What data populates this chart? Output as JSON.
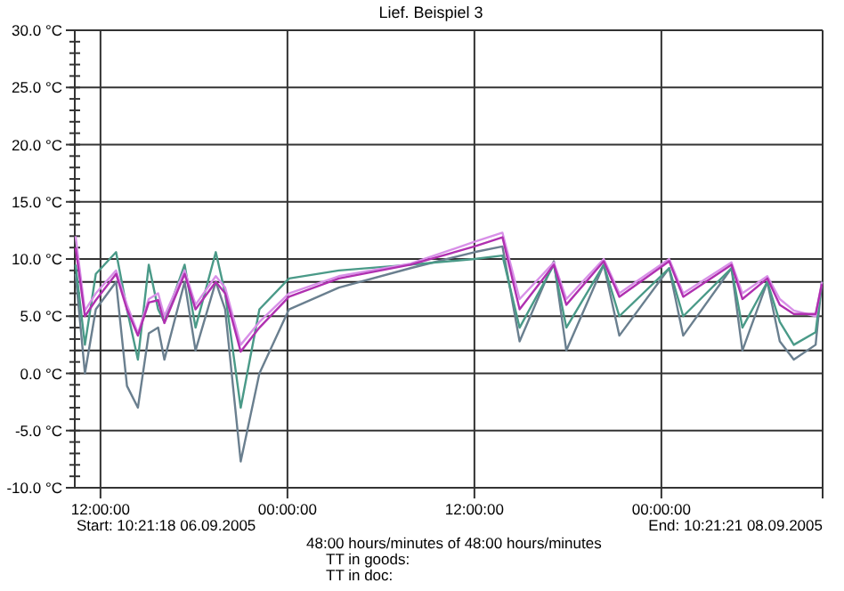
{
  "chart_data": {
    "type": "line",
    "title": "Lief. Beispiel 3",
    "x": [
      "2005-09-06T10:24",
      "2005-09-06T11:00",
      "2005-09-06T11:42",
      "2005-09-06T13:00",
      "2005-09-06T13:42",
      "2005-09-06T14:24",
      "2005-09-06T15:06",
      "2005-09-06T15:42",
      "2005-09-06T16:06",
      "2005-09-06T17:24",
      "2005-09-06T18:06",
      "2005-09-06T19:24",
      "2005-09-06T20:00",
      "2005-09-06T21:00",
      "2005-09-06T22:12",
      "2005-09-07T00:06",
      "2005-09-07T03:18",
      "2005-09-07T07:54",
      "2005-09-07T12:00",
      "2005-09-07T13:48",
      "2005-09-07T14:54",
      "2005-09-07T17:06",
      "2005-09-07T17:54",
      "2005-09-07T20:18",
      "2005-09-07T21:18",
      "2005-09-08T00:30",
      "2005-09-08T01:24",
      "2005-09-08T04:30",
      "2005-09-08T05:12",
      "2005-09-08T06:48",
      "2005-09-08T07:36",
      "2005-09-08T08:30",
      "2005-09-08T09:54",
      "2005-09-08T10:18"
    ],
    "series": [
      {
        "color": "#6a7f8f",
        "values": [
          8.7,
          0,
          5.6,
          8,
          -1.1,
          -3,
          3.5,
          4,
          1.2,
          8,
          2,
          8,
          5.6,
          -7.7,
          0,
          5.6,
          7.5,
          9.2,
          10.6,
          11.1,
          2.8,
          9.8,
          2,
          9.5,
          3.3,
          9.2,
          3.3,
          9.2,
          2,
          8,
          2.8,
          1.2,
          2.5,
          8
        ]
      },
      {
        "color": "#4a9a88",
        "values": [
          9.5,
          2.5,
          8.7,
          10.6,
          5.6,
          1.2,
          9.5,
          5.6,
          4.5,
          9.5,
          4,
          10.6,
          7,
          -3,
          5.6,
          8.3,
          9,
          9.5,
          10,
          10.3,
          4,
          9.5,
          4,
          9.5,
          5,
          9.2,
          5,
          9.2,
          4,
          8,
          4.5,
          2.5,
          3.6,
          8
        ]
      },
      {
        "color": "#d890e8",
        "values": [
          12,
          5.5,
          7,
          9,
          6,
          3.5,
          6.5,
          7,
          5,
          9,
          6,
          8.5,
          7.5,
          2.5,
          4.5,
          7,
          8.5,
          9.6,
          11.5,
          12.3,
          6.5,
          9.7,
          6.5,
          10,
          7,
          10,
          7,
          9.7,
          7,
          8.5,
          6.5,
          5.5,
          5,
          8
        ]
      },
      {
        "color": "#b030b0",
        "values": [
          11,
          5,
          6.4,
          8.7,
          5.6,
          3.3,
          6.2,
          6.4,
          4.4,
          8.7,
          5.6,
          8,
          7,
          1.9,
          4,
          6.7,
          8.3,
          9.5,
          11.1,
          11.9,
          5.6,
          9.5,
          6,
          9.8,
          6.7,
          9.8,
          6.7,
          9.5,
          6.5,
          8.3,
          6,
          5.2,
          5.2,
          7.8
        ]
      }
    ],
    "xlim": [
      "2005-09-06T10:21",
      "2005-09-08T10:21"
    ],
    "xticks": [
      {
        "value": "2005-09-06T12:00",
        "label": "12:00:00"
      },
      {
        "value": "2005-09-07T00:00",
        "label": "00:00:00"
      },
      {
        "value": "2005-09-07T12:00",
        "label": "12:00:00"
      },
      {
        "value": "2005-09-08T00:00",
        "label": "00:00:00"
      }
    ],
    "ylim": [
      -10,
      30
    ],
    "yticks": [
      {
        "value": -10,
        "label": "-10.0 °C"
      },
      {
        "value": -5,
        "label": "-5.0 °C"
      },
      {
        "value": 0,
        "label": "0.0 °C"
      },
      {
        "value": 5,
        "label": "5.0 °C"
      },
      {
        "value": 10,
        "label": "10.0 °C"
      },
      {
        "value": 15,
        "label": "15.0 °C"
      },
      {
        "value": 20,
        "label": "20.0 °C"
      },
      {
        "value": 25,
        "label": "25.0 °C"
      },
      {
        "value": 30,
        "label": "30.0 °C"
      }
    ],
    "grid": true,
    "line_style": "solid",
    "marker": "none",
    "ref_lines": [
      {
        "axis": "y",
        "value": 8,
        "color": "#222222"
      },
      {
        "axis": "y",
        "value": 2,
        "color": "#222222"
      }
    ],
    "annotations": [
      "Start:  10:21:18 06.09.2005",
      "End:  10:21:21 08.09.2005",
      "48:00 hours/minutes of  48:00 hours/minutes",
      "TT in goods:",
      "TT in doc:"
    ]
  }
}
